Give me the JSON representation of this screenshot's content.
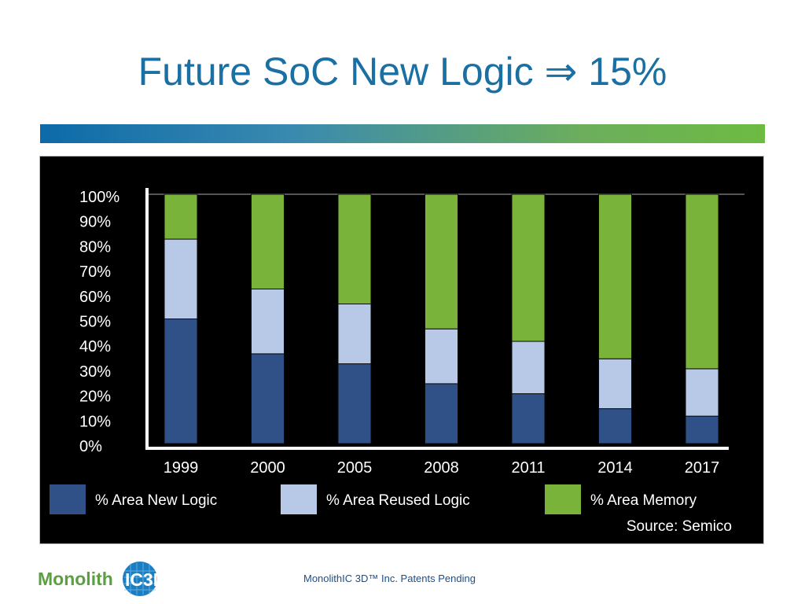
{
  "slide": {
    "title": "Future SoC New Logic ⇒ 15%",
    "footer": "MonolithIC 3D™ Inc. Patents Pending"
  },
  "logo": {
    "text_left": "Monolith",
    "text_box": "IC3D",
    "brand_green": "#5aa040",
    "brand_blue": "#1a7ec2"
  },
  "chart_data": {
    "type": "bar",
    "stacked": true,
    "categories": [
      "1999",
      "2000",
      "2005",
      "2008",
      "2011",
      "2014",
      "2017"
    ],
    "series": [
      {
        "name": "% Area New Logic",
        "color": "#2f5188",
        "values": [
          50,
          36,
          32,
          24,
          20,
          14,
          11
        ]
      },
      {
        "name": "% Area Reused Logic",
        "color": "#b7c9e6",
        "values": [
          32,
          26,
          24,
          22,
          21,
          20,
          19
        ]
      },
      {
        "name": "% Area Memory",
        "color": "#7ab33a",
        "values": [
          18,
          38,
          44,
          54,
          59,
          66,
          70
        ]
      }
    ],
    "yticks": [
      "0%",
      "10%",
      "20%",
      "30%",
      "40%",
      "50%",
      "60%",
      "70%",
      "80%",
      "90%",
      "100%"
    ],
    "ylim": [
      0,
      100
    ],
    "source": "Source: Semico",
    "legend_position": "bottom",
    "grid": false,
    "background": "#000000"
  }
}
